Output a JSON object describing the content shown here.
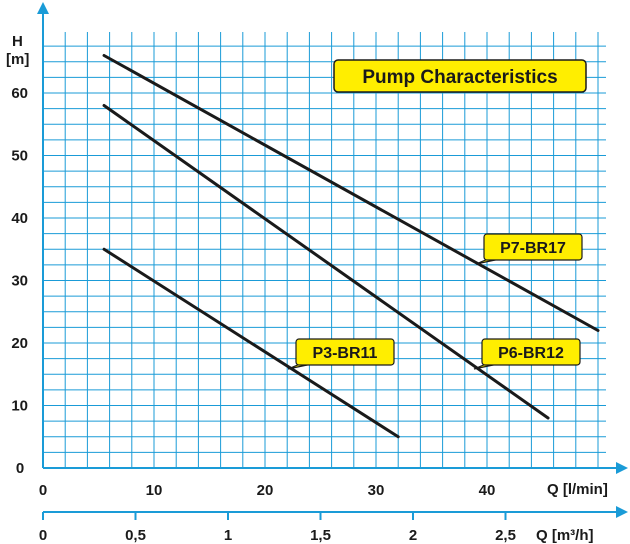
{
  "chart_data": {
    "type": "line",
    "title": "Pump Characteristics",
    "y_axis": {
      "label_line1": "H",
      "label_line2": "[m]",
      "range": [
        0,
        70
      ],
      "ticks": [
        0,
        10,
        20,
        30,
        40,
        50,
        60
      ],
      "minor_step": 2.5
    },
    "x_axis": {
      "label": "Q [l/min]",
      "range": [
        0,
        50
      ],
      "ticks": [
        0,
        10,
        20,
        30,
        40
      ],
      "minor_step": 2
    },
    "x2_axis": {
      "label": "Q [m³/h]",
      "ticks": [
        "0",
        "0,5",
        "1",
        "1,5",
        "2",
        "2,5"
      ],
      "tick_values": [
        0,
        0.5,
        1,
        1.5,
        2,
        2.5
      ]
    },
    "grid": true,
    "colors": {
      "grid": "#1a9bd7",
      "line": "#1a1a1a",
      "callout": "#ffee00"
    },
    "series": [
      {
        "name": "P7-BR17",
        "x": [
          5.5,
          50
        ],
        "y": [
          66,
          22
        ]
      },
      {
        "name": "P6-BR12",
        "x": [
          5.5,
          45.5
        ],
        "y": [
          58,
          8
        ]
      },
      {
        "name": "P3-BR11",
        "x": [
          5.5,
          32
        ],
        "y": [
          35,
          5
        ]
      }
    ]
  }
}
